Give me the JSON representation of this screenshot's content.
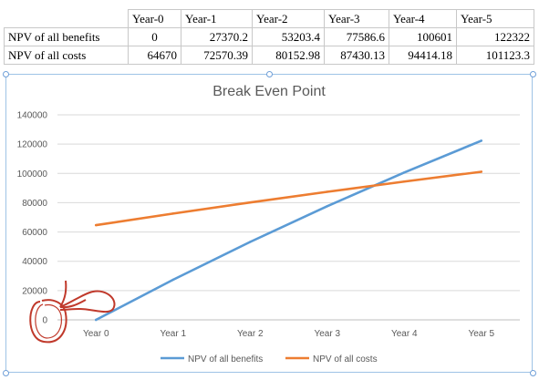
{
  "table": {
    "headers": [
      "Year-0",
      "Year-1",
      "Year-2",
      "Year-3",
      "Year-4",
      "Year-5"
    ],
    "rows": [
      {
        "label": "NPV of all benefits",
        "values": [
          "0",
          "27370.2",
          "53203.4",
          "77586.6",
          "100601",
          "122322"
        ]
      },
      {
        "label": "NPV of all costs",
        "values": [
          "64670",
          "72570.39",
          "80152.98",
          "87430.13",
          "94414.18",
          "101123.3"
        ]
      }
    ]
  },
  "chart_data": {
    "type": "line",
    "title": "Break Even Point",
    "categories": [
      "Year 0",
      "Year 1",
      "Year 2",
      "Year 3",
      "Year 4",
      "Year 5"
    ],
    "series": [
      {
        "name": "NPV of all benefits",
        "color": "#5b9bd5",
        "values": [
          0,
          27370.2,
          53203.4,
          77586.6,
          100601,
          122322
        ]
      },
      {
        "name": "NPV of all costs",
        "color": "#ed7d31",
        "values": [
          64670,
          72570.39,
          80152.98,
          87430.13,
          94414.18,
          101123.3
        ]
      }
    ],
    "yticks": [
      "0",
      "20000",
      "40000",
      "60000",
      "80000",
      "100000",
      "120000",
      "140000"
    ],
    "ylim": [
      0,
      140000
    ],
    "grid": true,
    "legend": "bottom",
    "annotation_color": "#c0392b"
  }
}
